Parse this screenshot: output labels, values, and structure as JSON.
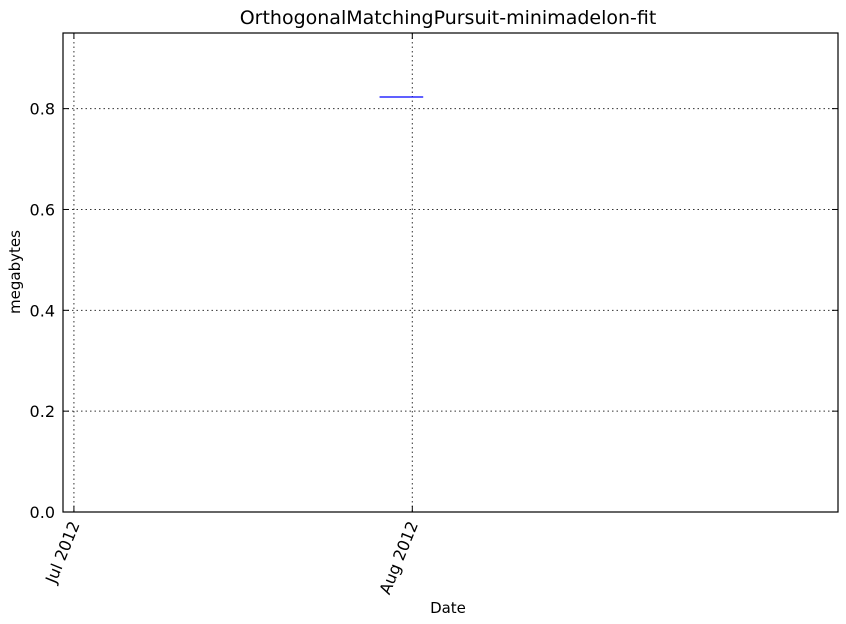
{
  "chart_data": {
    "type": "line",
    "title": "OrthogonalMatchingPursuit-minimadelon-fit",
    "xlabel": "Date",
    "ylabel": "megabytes",
    "x_ticks": [
      "Jul 2012",
      "Aug 2012"
    ],
    "y_ticks": [
      "0.0",
      "0.2",
      "0.4",
      "0.6",
      "0.8"
    ],
    "xlim": [
      "2012-06-30",
      "2012-09-09"
    ],
    "ylim": [
      0,
      0.95
    ],
    "grid": true,
    "series": [
      {
        "color": "#0000ff",
        "points": [
          {
            "x": "2012-07-29",
            "y": 0.823
          },
          {
            "x": "2012-08-02",
            "y": 0.823
          }
        ]
      }
    ]
  }
}
